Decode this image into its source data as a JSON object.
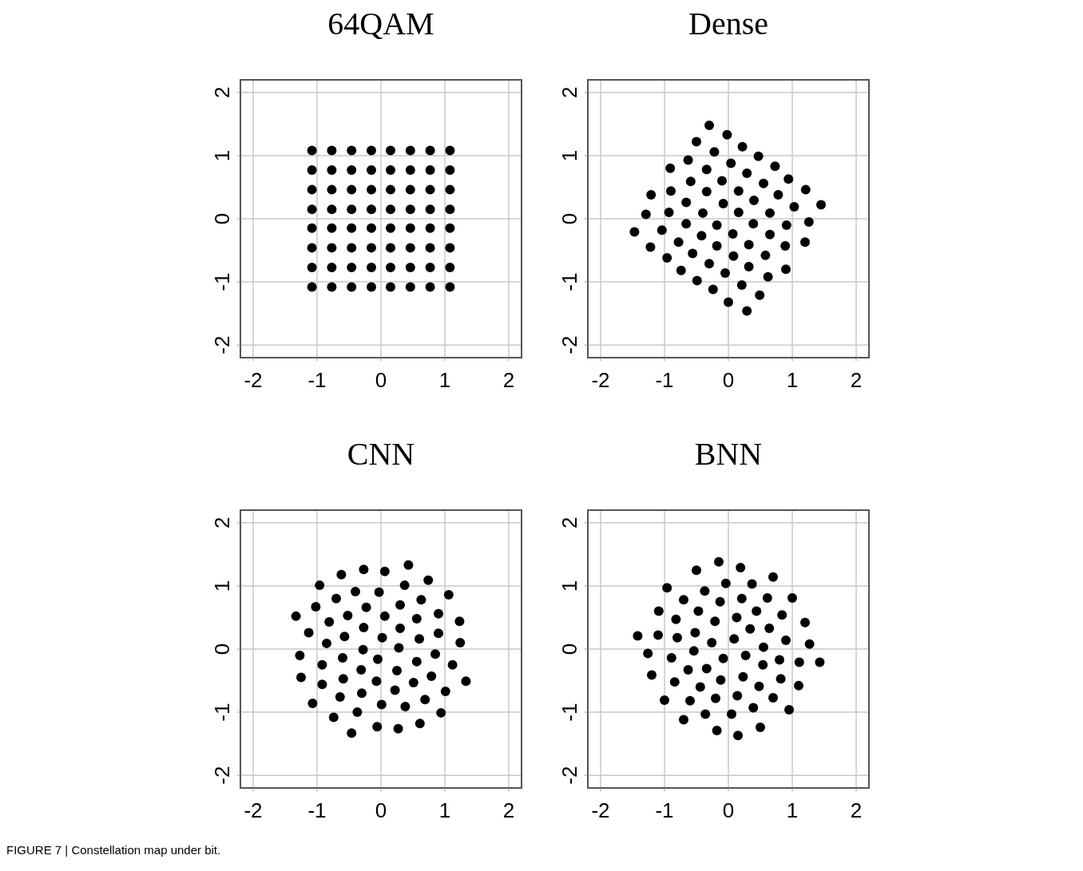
{
  "chart_data": [
    {
      "type": "scatter",
      "title": "64QAM",
      "xlim": [
        -2.2,
        2.2
      ],
      "ylim": [
        -2.2,
        2.2
      ],
      "xticks": [
        -2,
        -1,
        0,
        1,
        2
      ],
      "yticks": [
        -2,
        -1,
        0,
        1,
        2
      ],
      "grid": true,
      "marker": "circle",
      "annotations": [
        "FIGURE 7 | Constellation map under bit."
      ],
      "series": [
        {
          "color": "#000000",
          "x": [
            -1.08,
            -0.77,
            -0.46,
            -0.15,
            0.15,
            0.46,
            0.77,
            1.08,
            -1.08,
            -0.77,
            -0.46,
            -0.15,
            0.15,
            0.46,
            0.77,
            1.08,
            -1.08,
            -0.77,
            -0.46,
            -0.15,
            0.15,
            0.46,
            0.77,
            1.08,
            -1.08,
            -0.77,
            -0.46,
            -0.15,
            0.15,
            0.46,
            0.77,
            1.08,
            -1.08,
            -0.77,
            -0.46,
            -0.15,
            0.15,
            0.46,
            0.77,
            1.08,
            -1.08,
            -0.77,
            -0.46,
            -0.15,
            0.15,
            0.46,
            0.77,
            1.08,
            -1.08,
            -0.77,
            -0.46,
            -0.15,
            0.15,
            0.46,
            0.77,
            1.08,
            -1.08,
            -0.77,
            -0.46,
            -0.15,
            0.15,
            0.46,
            0.77,
            1.08
          ],
          "values": [
            1.08,
            1.08,
            1.08,
            1.08,
            1.08,
            1.08,
            1.08,
            1.08,
            0.77,
            0.77,
            0.77,
            0.77,
            0.77,
            0.77,
            0.77,
            0.77,
            0.46,
            0.46,
            0.46,
            0.46,
            0.46,
            0.46,
            0.46,
            0.46,
            0.15,
            0.15,
            0.15,
            0.15,
            0.15,
            0.15,
            0.15,
            0.15,
            -0.15,
            -0.15,
            -0.15,
            -0.15,
            -0.15,
            -0.15,
            -0.15,
            -0.15,
            -0.46,
            -0.46,
            -0.46,
            -0.46,
            -0.46,
            -0.46,
            -0.46,
            -0.46,
            -0.77,
            -0.77,
            -0.77,
            -0.77,
            -0.77,
            -0.77,
            -0.77,
            -0.77,
            -1.08,
            -1.08,
            -1.08,
            -1.08,
            -1.08,
            -1.08,
            -1.08,
            -1.08
          ]
        }
      ]
    },
    {
      "type": "scatter",
      "title": "Dense",
      "xlim": [
        -2.2,
        2.2
      ],
      "ylim": [
        -2.2,
        2.2
      ],
      "xticks": [
        -2,
        -1,
        0,
        1,
        2
      ],
      "yticks": [
        -2,
        -1,
        0,
        1,
        2
      ],
      "grid": true,
      "marker": "circle",
      "series": [
        {
          "color": "#000000",
          "x": [
            -0.3,
            -0.02,
            -0.5,
            0.22,
            -0.22,
            0.47,
            -0.63,
            0.04,
            -0.91,
            -0.34,
            0.73,
            0.29,
            -0.59,
            -0.1,
            0.94,
            0.55,
            -1.21,
            -0.9,
            -0.34,
            0.16,
            1.21,
            0.78,
            -0.66,
            -0.08,
            0.4,
            1.45,
            1.03,
            -1.29,
            -0.93,
            -0.4,
            0.16,
            0.65,
            1.26,
            -0.66,
            -0.18,
            0.39,
            0.91,
            -1.47,
            -1.04,
            -0.42,
            0.07,
            0.65,
            -0.78,
            -0.18,
            0.32,
            0.89,
            1.2,
            -1.22,
            -0.56,
            0.08,
            0.58,
            -0.96,
            -0.3,
            0.32,
            0.9,
            -0.74,
            -0.05,
            0.62,
            -0.49,
            0.21,
            -0.24,
            0.49,
            0.0,
            0.29
          ],
          "values": [
            1.48,
            1.33,
            1.22,
            1.14,
            1.06,
            0.99,
            0.93,
            0.88,
            0.8,
            0.78,
            0.83,
            0.72,
            0.59,
            0.6,
            0.63,
            0.56,
            0.38,
            0.44,
            0.43,
            0.44,
            0.46,
            0.38,
            0.26,
            0.24,
            0.29,
            0.22,
            0.19,
            0.07,
            0.1,
            0.09,
            0.1,
            0.09,
            -0.05,
            -0.08,
            -0.1,
            -0.08,
            -0.1,
            -0.21,
            -0.18,
            -0.27,
            -0.24,
            -0.25,
            -0.37,
            -0.43,
            -0.41,
            -0.43,
            -0.37,
            -0.45,
            -0.55,
            -0.59,
            -0.58,
            -0.62,
            -0.71,
            -0.76,
            -0.8,
            -0.82,
            -0.86,
            -0.92,
            -0.98,
            -1.05,
            -1.12,
            -1.21,
            -1.32,
            -1.46
          ]
        }
      ]
    },
    {
      "type": "scatter",
      "title": "CNN",
      "xlim": [
        -2.2,
        2.2
      ],
      "ylim": [
        -2.2,
        2.2
      ],
      "xticks": [
        -2,
        -1,
        0,
        1,
        2
      ],
      "yticks": [
        -2,
        -1,
        0,
        1,
        2
      ],
      "grid": true,
      "marker": "circle",
      "series": [
        {
          "color": "#000000",
          "x": [
            0.43,
            -0.27,
            0.06,
            -0.62,
            0.74,
            -0.96,
            0.37,
            -0.4,
            -0.03,
            1.06,
            -0.7,
            0.63,
            0.3,
            -1.02,
            -0.23,
            0.9,
            -1.33,
            -0.52,
            0.06,
            -0.81,
            0.56,
            1.23,
            -0.27,
            0.3,
            -1.13,
            0.9,
            -0.57,
            0.02,
            0.6,
            -0.85,
            1.24,
            -0.28,
            0.28,
            -1.27,
            -0.05,
            -0.6,
            0.85,
            -0.92,
            0.56,
            1.12,
            -0.31,
            0.25,
            -1.25,
            -0.59,
            0.79,
            -0.07,
            0.51,
            -0.92,
            1.33,
            0.22,
            -0.3,
            1.01,
            -0.64,
            0.69,
            -1.07,
            0.01,
            0.38,
            -0.37,
            0.94,
            -0.74,
            0.61,
            -0.06,
            0.27,
            -0.46
          ],
          "values": [
            1.33,
            1.26,
            1.23,
            1.18,
            1.09,
            1.01,
            1.01,
            0.91,
            0.9,
            0.86,
            0.8,
            0.78,
            0.7,
            0.67,
            0.66,
            0.56,
            0.52,
            0.53,
            0.52,
            0.43,
            0.48,
            0.44,
            0.34,
            0.33,
            0.26,
            0.25,
            0.2,
            0.18,
            0.16,
            0.09,
            0.1,
            -0.01,
            0.02,
            -0.1,
            -0.16,
            -0.14,
            -0.08,
            -0.25,
            -0.2,
            -0.25,
            -0.33,
            -0.34,
            -0.45,
            -0.47,
            -0.43,
            -0.51,
            -0.53,
            -0.56,
            -0.51,
            -0.65,
            -0.7,
            -0.67,
            -0.76,
            -0.8,
            -0.86,
            -0.88,
            -0.91,
            -1.0,
            -1.01,
            -1.08,
            -1.18,
            -1.23,
            -1.26,
            -1.33
          ]
        }
      ]
    },
    {
      "type": "scatter",
      "title": "BNN",
      "xlim": [
        -2.2,
        2.2
      ],
      "ylim": [
        -2.2,
        2.2
      ],
      "xticks": [
        -2,
        -1,
        0,
        1,
        2
      ],
      "yticks": [
        -2,
        -1,
        0,
        1,
        2
      ],
      "grid": true,
      "marker": "circle",
      "series": [
        {
          "color": "#000000",
          "x": [
            -0.15,
            0.19,
            -0.5,
            0.7,
            -0.04,
            0.37,
            -0.96,
            -0.37,
            -0.7,
            -0.13,
            0.21,
            0.61,
            1.0,
            -1.09,
            -0.47,
            0.44,
            -0.82,
            -0.21,
            0.13,
            0.84,
            1.2,
            0.34,
            0.64,
            -1.42,
            -1.1,
            -0.8,
            -0.52,
            -0.26,
            0.09,
            0.9,
            1.27,
            0.55,
            -1.26,
            -0.54,
            -0.89,
            -0.08,
            0.27,
            0.8,
            1.11,
            1.43,
            0.54,
            -0.63,
            -0.34,
            -1.2,
            0.23,
            -0.12,
            -0.84,
            0.82,
            -0.44,
            0.48,
            1.1,
            -1.0,
            -0.6,
            -0.2,
            0.14,
            0.7,
            0.39,
            0.95,
            -0.36,
            0.05,
            -0.7,
            0.5,
            -0.18,
            0.15
          ],
          "values": [
            1.38,
            1.29,
            1.25,
            1.14,
            1.04,
            1.03,
            0.97,
            0.92,
            0.78,
            0.75,
            0.8,
            0.81,
            0.81,
            0.6,
            0.6,
            0.6,
            0.47,
            0.44,
            0.5,
            0.54,
            0.42,
            0.32,
            0.33,
            0.21,
            0.22,
            0.18,
            0.26,
            0.1,
            0.16,
            0.14,
            0.08,
            0.03,
            -0.07,
            -0.03,
            -0.14,
            -0.15,
            -0.1,
            -0.17,
            -0.21,
            -0.21,
            -0.25,
            -0.33,
            -0.31,
            -0.41,
            -0.44,
            -0.49,
            -0.52,
            -0.47,
            -0.6,
            -0.59,
            -0.58,
            -0.81,
            -0.82,
            -0.78,
            -0.74,
            -0.77,
            -0.93,
            -0.96,
            -1.03,
            -1.03,
            -1.12,
            -1.24,
            -1.29,
            -1.37
          ]
        }
      ]
    }
  ]
}
